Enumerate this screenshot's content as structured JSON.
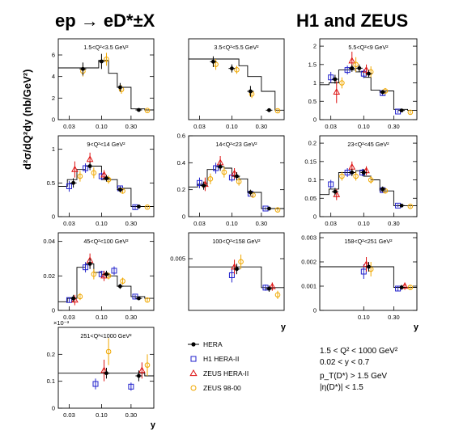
{
  "figure": {
    "title_left": "ep → eD*±X",
    "title_right": "H1 and ZEUS",
    "y_axis_label": "d²σ/dQ²dy (nb/GeV²)",
    "x_axis_label": "y",
    "exponent_label": "×10⁻³",
    "legend": [
      {
        "label": "HERA",
        "marker": "filled-circle",
        "color": "#000000"
      },
      {
        "label": "H1 HERA-II",
        "marker": "open-square",
        "color": "#2222cc"
      },
      {
        "label": "ZEUS HERA-II",
        "marker": "open-triangle",
        "color": "#dd1111"
      },
      {
        "label": "ZEUS 98-00",
        "marker": "open-circle",
        "color": "#f0a800"
      }
    ],
    "cuts": [
      "1.5 < Q² < 1000 GeV²",
      "0.02 < y < 0.7",
      "p_T(D*) > 1.5 GeV",
      "|η(D*)| < 1.5"
    ],
    "colors": {
      "hera": "#000000",
      "h1": "#2222cc",
      "zeus2": "#dd1111",
      "zeus98": "#f0a800"
    }
  },
  "chart_data": [
    {
      "type": "scatter",
      "title": "1.5<Q²<3.5 GeV²",
      "ylim": [
        0,
        7.5
      ],
      "yticks": [
        "0",
        "2",
        "4",
        "6"
      ],
      "xticks": [
        "0.03",
        "0.10",
        "0.30"
      ],
      "show_xlabel": false,
      "step_edges": [
        0.02,
        0.05,
        0.09,
        0.13,
        0.18,
        0.3,
        0.5,
        0.7
      ],
      "step_values": [
        4.8,
        4.8,
        5.5,
        4.3,
        3.0,
        1.0,
        0.9
      ],
      "hera": [
        [
          0.05,
          4.7,
          0.6
        ],
        [
          0.1,
          5.4,
          0.7
        ],
        [
          0.2,
          3.0,
          0.4
        ],
        [
          0.4,
          0.9,
          0.15
        ]
      ],
      "h1": [],
      "zeus2": [],
      "zeus98": [
        [
          0.05,
          4.5,
          0.5
        ],
        [
          0.12,
          5.6,
          0.6
        ],
        [
          0.21,
          2.8,
          0.4
        ],
        [
          0.55,
          0.85,
          0.12
        ]
      ]
    },
    {
      "type": "scatter",
      "title": "3.5<Q²<5.5 GeV²",
      "ylim": [
        0,
        3.0
      ],
      "yticks": [],
      "xticks": [
        "0.03",
        "0.10",
        "0.30"
      ],
      "show_xlabel": false,
      "step_edges": [
        0.02,
        0.05,
        0.09,
        0.13,
        0.18,
        0.3,
        0.5,
        0.7
      ],
      "step_values": [
        2.25,
        2.25,
        2.25,
        2.0,
        1.6,
        1.05,
        0.35
      ],
      "hera": [
        [
          0.05,
          2.15,
          0.2
        ],
        [
          0.1,
          1.9,
          0.15
        ],
        [
          0.2,
          1.05,
          0.2
        ],
        [
          0.4,
          0.35,
          0.05
        ]
      ],
      "h1": [],
      "zeus2": [],
      "zeus98": [
        [
          0.055,
          2.05,
          0.2
        ],
        [
          0.12,
          1.85,
          0.15
        ],
        [
          0.21,
          0.95,
          0.15
        ],
        [
          0.55,
          0.33,
          0.05
        ]
      ]
    },
    {
      "type": "scatter",
      "title": "5.5<Q²<9 GeV²",
      "ylim": [
        0,
        2.2
      ],
      "yticks": [
        "0",
        "0.5",
        "1",
        "1.5",
        "2"
      ],
      "xticks": [
        "0.03",
        "0.10",
        "0.30"
      ],
      "show_xlabel": false,
      "step_edges": [
        0.02,
        0.028,
        0.04,
        0.055,
        0.075,
        0.1,
        0.13,
        0.18,
        0.3,
        0.5,
        0.7
      ],
      "step_values": [
        0.95,
        1.0,
        1.35,
        1.35,
        1.3,
        1.15,
        0.8,
        0.78,
        0.28,
        0.25
      ],
      "hera": [
        [
          0.035,
          1.1,
          0.12
        ],
        [
          0.065,
          1.4,
          0.1
        ],
        [
          0.085,
          1.4,
          0.1
        ],
        [
          0.12,
          1.25,
          0.1
        ],
        [
          0.2,
          0.75,
          0.06
        ],
        [
          0.4,
          0.25,
          0.04
        ]
      ],
      "h1": [
        [
          0.03,
          1.15,
          0.15
        ],
        [
          0.055,
          1.35,
          0.12
        ],
        [
          0.1,
          1.25,
          0.12
        ],
        [
          0.2,
          0.72,
          0.06
        ],
        [
          0.35,
          0.22,
          0.04
        ]
      ],
      "zeus2": [
        [
          0.037,
          0.75,
          0.3
        ],
        [
          0.065,
          1.6,
          0.25
        ],
        [
          0.11,
          1.35,
          0.15
        ]
      ],
      "zeus98": [
        [
          0.045,
          1.0,
          0.15
        ],
        [
          0.075,
          1.5,
          0.2
        ],
        [
          0.13,
          1.3,
          0.15
        ],
        [
          0.22,
          0.78,
          0.08
        ],
        [
          0.55,
          0.2,
          0.04
        ]
      ]
    },
    {
      "type": "scatter",
      "title": "9<Q²<14 GeV²",
      "ylim": [
        0,
        1.2
      ],
      "yticks": [
        "0",
        "0.5",
        "1"
      ],
      "xticks": [
        "0.03",
        "0.10",
        "0.30"
      ],
      "show_xlabel": false,
      "step_edges": [
        0.02,
        0.028,
        0.04,
        0.055,
        0.075,
        0.1,
        0.13,
        0.18,
        0.3,
        0.5,
        0.7
      ],
      "step_values": [
        0.45,
        0.55,
        0.7,
        0.75,
        0.75,
        0.55,
        0.55,
        0.42,
        0.15,
        0.15
      ],
      "hera": [
        [
          0.035,
          0.5,
          0.07
        ],
        [
          0.065,
          0.75,
          0.06
        ],
        [
          0.12,
          0.57,
          0.05
        ],
        [
          0.2,
          0.4,
          0.04
        ],
        [
          0.4,
          0.15,
          0.02
        ]
      ],
      "h1": [
        [
          0.03,
          0.45,
          0.08
        ],
        [
          0.055,
          0.72,
          0.07
        ],
        [
          0.1,
          0.6,
          0.06
        ],
        [
          0.2,
          0.42,
          0.04
        ],
        [
          0.35,
          0.14,
          0.03
        ]
      ],
      "zeus2": [
        [
          0.037,
          0.7,
          0.12
        ],
        [
          0.065,
          0.85,
          0.1
        ],
        [
          0.11,
          0.62,
          0.07
        ]
      ],
      "zeus98": [
        [
          0.045,
          0.6,
          0.08
        ],
        [
          0.075,
          0.65,
          0.08
        ],
        [
          0.13,
          0.55,
          0.06
        ],
        [
          0.22,
          0.38,
          0.04
        ],
        [
          0.55,
          0.14,
          0.02
        ]
      ]
    },
    {
      "type": "scatter",
      "title": "14<Q²<23 GeV²",
      "ylim": [
        0,
        0.6
      ],
      "yticks": [
        "0",
        "0.2",
        "0.4",
        "0.6"
      ],
      "xticks": [
        "0.03",
        "0.10",
        "0.30"
      ],
      "show_xlabel": false,
      "step_edges": [
        0.02,
        0.028,
        0.04,
        0.055,
        0.075,
        0.1,
        0.13,
        0.18,
        0.3,
        0.5,
        0.7
      ],
      "step_values": [
        0.22,
        0.24,
        0.35,
        0.37,
        0.36,
        0.3,
        0.28,
        0.18,
        0.06,
        0.06
      ],
      "hera": [
        [
          0.035,
          0.23,
          0.03
        ],
        [
          0.065,
          0.37,
          0.03
        ],
        [
          0.12,
          0.3,
          0.03
        ],
        [
          0.2,
          0.18,
          0.02
        ],
        [
          0.4,
          0.06,
          0.01
        ]
      ],
      "h1": [
        [
          0.03,
          0.25,
          0.04
        ],
        [
          0.055,
          0.36,
          0.04
        ],
        [
          0.1,
          0.29,
          0.03
        ],
        [
          0.2,
          0.17,
          0.02
        ],
        [
          0.35,
          0.06,
          0.01
        ]
      ],
      "zeus2": [
        [
          0.037,
          0.24,
          0.05
        ],
        [
          0.065,
          0.4,
          0.05
        ],
        [
          0.11,
          0.32,
          0.04
        ]
      ],
      "zeus98": [
        [
          0.045,
          0.28,
          0.04
        ],
        [
          0.075,
          0.33,
          0.04
        ],
        [
          0.13,
          0.26,
          0.03
        ],
        [
          0.22,
          0.16,
          0.02
        ],
        [
          0.55,
          0.05,
          0.01
        ]
      ]
    },
    {
      "type": "scatter",
      "title": "23<Q²<45 GeV²",
      "ylim": [
        0,
        0.22
      ],
      "yticks": [
        "0",
        "0.05",
        "0.1",
        "0.15",
        "0.2"
      ],
      "xticks": [
        "0.03",
        "0.10",
        "0.30"
      ],
      "show_xlabel": false,
      "step_edges": [
        0.02,
        0.028,
        0.04,
        0.055,
        0.075,
        0.1,
        0.13,
        0.18,
        0.3,
        0.5,
        0.7
      ],
      "step_values": [
        0.06,
        0.075,
        0.12,
        0.12,
        0.125,
        0.11,
        0.1,
        0.07,
        0.03,
        0.03
      ],
      "hera": [
        [
          0.035,
          0.068,
          0.01
        ],
        [
          0.065,
          0.12,
          0.01
        ],
        [
          0.1,
          0.12,
          0.01
        ],
        [
          0.2,
          0.075,
          0.007
        ],
        [
          0.4,
          0.03,
          0.004
        ]
      ],
      "h1": [
        [
          0.03,
          0.088,
          0.012
        ],
        [
          0.055,
          0.12,
          0.012
        ],
        [
          0.095,
          0.12,
          0.01
        ],
        [
          0.2,
          0.072,
          0.007
        ],
        [
          0.35,
          0.03,
          0.004
        ]
      ],
      "zeus2": [
        [
          0.037,
          0.06,
          0.015
        ],
        [
          0.065,
          0.135,
          0.015
        ],
        [
          0.11,
          0.125,
          0.012
        ]
      ],
      "zeus98": [
        [
          0.045,
          0.11,
          0.012
        ],
        [
          0.075,
          0.11,
          0.012
        ],
        [
          0.13,
          0.1,
          0.01
        ],
        [
          0.22,
          0.07,
          0.007
        ],
        [
          0.55,
          0.028,
          0.004
        ]
      ]
    },
    {
      "type": "scatter",
      "title": "45<Q²<100 GeV²",
      "ylim": [
        0,
        0.045
      ],
      "yticks": [
        "0",
        "0.02",
        "0.04"
      ],
      "xticks": [
        "0.03",
        "0.10",
        "0.30"
      ],
      "show_xlabel": false,
      "step_edges": [
        0.02,
        0.028,
        0.04,
        0.055,
        0.075,
        0.1,
        0.13,
        0.18,
        0.3,
        0.5,
        0.7
      ],
      "step_values": [
        0.005,
        0.007,
        0.025,
        0.027,
        0.022,
        0.021,
        0.02,
        0.014,
        0.008,
        0.007
      ],
      "hera": [
        [
          0.035,
          0.007,
          0.002
        ],
        [
          0.065,
          0.027,
          0.003
        ],
        [
          0.12,
          0.021,
          0.002
        ],
        [
          0.2,
          0.014,
          0.0015
        ],
        [
          0.4,
          0.007,
          0.001
        ]
      ],
      "h1": [
        [
          0.03,
          0.006,
          0.0015
        ],
        [
          0.055,
          0.025,
          0.003
        ],
        [
          0.1,
          0.021,
          0.002
        ],
        [
          0.16,
          0.023,
          0.0025
        ],
        [
          0.35,
          0.008,
          0.001
        ]
      ],
      "zeus2": [
        [
          0.037,
          0.006,
          0.003
        ],
        [
          0.065,
          0.029,
          0.004
        ],
        [
          0.11,
          0.02,
          0.003
        ]
      ],
      "zeus98": [
        [
          0.045,
          0.008,
          0.002
        ],
        [
          0.075,
          0.021,
          0.003
        ],
        [
          0.13,
          0.02,
          0.002
        ],
        [
          0.22,
          0.017,
          0.002
        ],
        [
          0.55,
          0.006,
          0.001
        ]
      ]
    },
    {
      "type": "scatter",
      "title": "100<Q²<158 GeV²",
      "ylim": [
        0,
        0.0075
      ],
      "yticks": [
        "0.005"
      ],
      "xticks": [],
      "show_xlabel": true,
      "step_edges": [
        0.02,
        0.1,
        0.13,
        0.18,
        0.3,
        0.5,
        0.7
      ],
      "step_values": [
        0.0042,
        0.0042,
        0.0042,
        0.0042,
        0.0022,
        0.0022
      ],
      "hera": [
        [
          0.12,
          0.004,
          0.0005
        ],
        [
          0.4,
          0.0021,
          0.0003
        ]
      ],
      "h1": [
        [
          0.1,
          0.0034,
          0.0007
        ],
        [
          0.35,
          0.0022,
          0.0003
        ]
      ],
      "zeus2": [
        [
          0.11,
          0.0042,
          0.0007
        ],
        [
          0.45,
          0.0023,
          0.0004
        ]
      ],
      "zeus98": [
        [
          0.14,
          0.0047,
          0.0007
        ],
        [
          0.55,
          0.0015,
          0.0004
        ]
      ]
    },
    {
      "type": "scatter",
      "title": "158<Q²<251 GeV²",
      "ylim": [
        0,
        0.0032
      ],
      "yticks": [
        "0",
        "0.001",
        "0.002",
        "0.003"
      ],
      "xticks": [
        "0.10",
        "0.30"
      ],
      "show_xlabel": true,
      "step_edges": [
        0.02,
        0.1,
        0.13,
        0.18,
        0.3,
        0.5,
        0.7
      ],
      "step_values": [
        0.0018,
        0.0018,
        0.0018,
        0.0018,
        0.00095,
        0.00095
      ],
      "hera": [
        [
          0.12,
          0.0018,
          0.0002
        ],
        [
          0.4,
          0.00095,
          0.0001
        ]
      ],
      "h1": [
        [
          0.1,
          0.0016,
          0.0003
        ],
        [
          0.35,
          0.0009,
          0.0001
        ]
      ],
      "zeus2": [
        [
          0.11,
          0.0019,
          0.0003
        ],
        [
          0.45,
          0.001,
          0.00015
        ]
      ],
      "zeus98": [
        [
          0.13,
          0.0017,
          0.0003
        ],
        [
          0.55,
          0.00095,
          0.0001
        ]
      ]
    },
    {
      "type": "scatter",
      "title": "251<Q²<1000 GeV²",
      "ylim": [
        0,
        0.3
      ],
      "yticks": [
        "0",
        "0.1",
        "0.2"
      ],
      "xticks": [
        "0.03",
        "0.10",
        "0.30"
      ],
      "show_xlabel": true,
      "step_edges": [
        0.02,
        0.1,
        0.13,
        0.18,
        0.3,
        0.5,
        0.7
      ],
      "step_values": [
        0.13,
        0.13,
        0.13,
        0.13,
        0.13,
        0.12
      ],
      "hera": [
        [
          0.12,
          0.13,
          0.02
        ],
        [
          0.4,
          0.12,
          0.02
        ]
      ],
      "h1": [
        [
          0.08,
          0.09,
          0.02
        ],
        [
          0.3,
          0.08,
          0.015
        ]
      ],
      "zeus2": [
        [
          0.11,
          0.14,
          0.04
        ],
        [
          0.45,
          0.14,
          0.03
        ]
      ],
      "zeus98": [
        [
          0.13,
          0.21,
          0.05
        ],
        [
          0.55,
          0.16,
          0.04
        ]
      ]
    }
  ]
}
